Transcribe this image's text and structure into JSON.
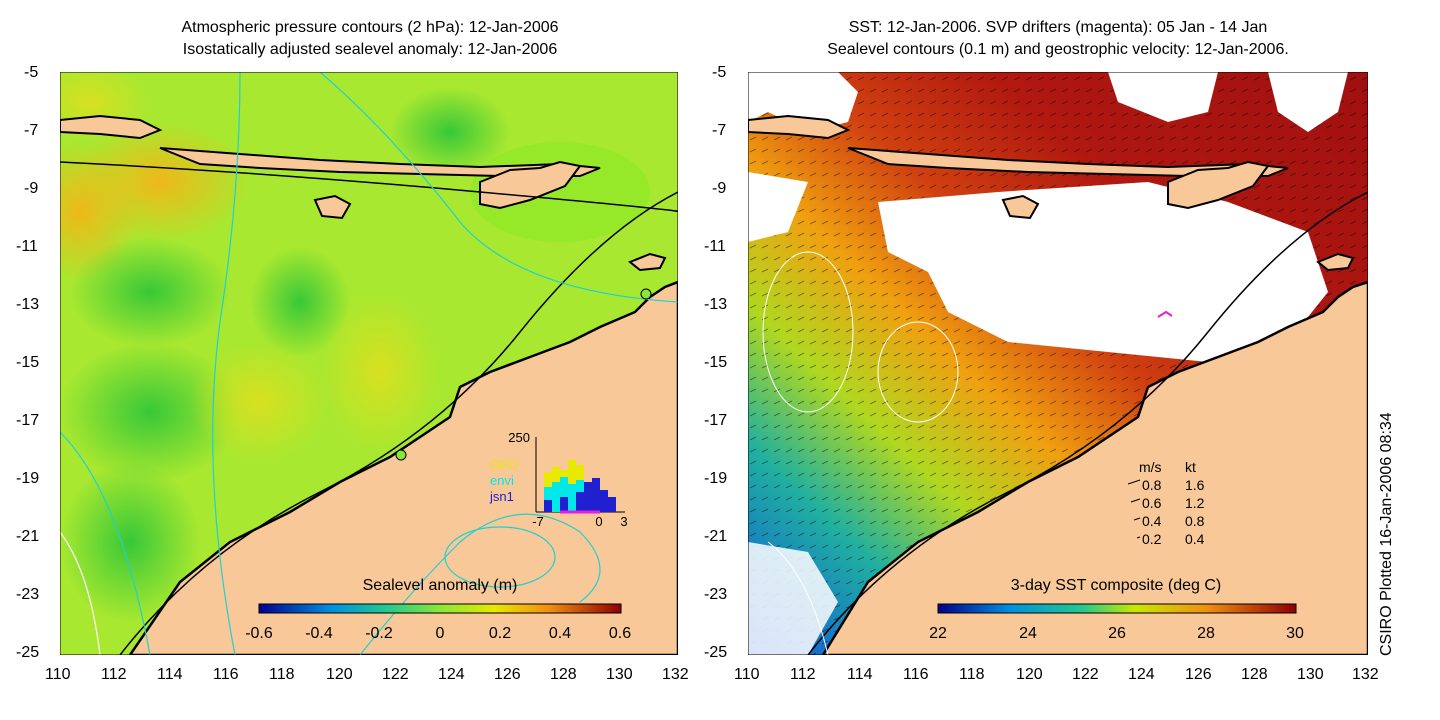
{
  "left_panel": {
    "title_line1": "Atmospheric pressure contours (2 hPa): 12-Jan-2006",
    "title_line2": "Isostatically adjusted sealevel anomaly: 12-Jan-2006",
    "colorbar_label": "Sealevel anomaly (m)",
    "colorbar_ticks": [
      "-0.6",
      "-0.4",
      "-0.2",
      "0",
      "0.2",
      "0.4",
      "0.6"
    ],
    "inset": {
      "max_label": "250",
      "legend": [
        {
          "name": "GFO",
          "color": "#e8e800"
        },
        {
          "name": "envi",
          "color": "#00e8e8"
        },
        {
          "name": "jsn1",
          "color": "#2020d0"
        }
      ],
      "x_ticks": [
        "-7",
        "0",
        "3"
      ]
    }
  },
  "right_panel": {
    "title_line1": "SST: 12-Jan-2006. SVP drifters (magenta): 05 Jan - 14 Jan",
    "title_line2": "Sealevel contours (0.1 m) and geostrophic velocity: 12-Jan-2006.",
    "colorbar_label": "3-day SST composite (deg C)",
    "colorbar_ticks": [
      "22",
      "24",
      "26",
      "28",
      "30"
    ],
    "velocity_legend": {
      "header_ms": "m/s",
      "header_kt": "kt",
      "rows": [
        {
          "ms": "0.8",
          "kt": "1.6"
        },
        {
          "ms": "0.6",
          "kt": "1.2"
        },
        {
          "ms": "0.4",
          "kt": "0.8"
        },
        {
          "ms": "0.2",
          "kt": "0.4"
        }
      ]
    }
  },
  "axes": {
    "y_ticks": [
      "-5",
      "-7",
      "-9",
      "-11",
      "-13",
      "-15",
      "-17",
      "-19",
      "-21",
      "-23",
      "-25"
    ],
    "x_ticks": [
      "110",
      "112",
      "114",
      "116",
      "118",
      "120",
      "122",
      "124",
      "126",
      "128",
      "130",
      "132"
    ]
  },
  "credit": "CSIRO Plotted 16-Jan-2006 08:34",
  "colors": {
    "land": "#f8c898",
    "sla_mid": "#88e838",
    "sst_warm": "#b01810",
    "cloud": "#ffffff"
  }
}
